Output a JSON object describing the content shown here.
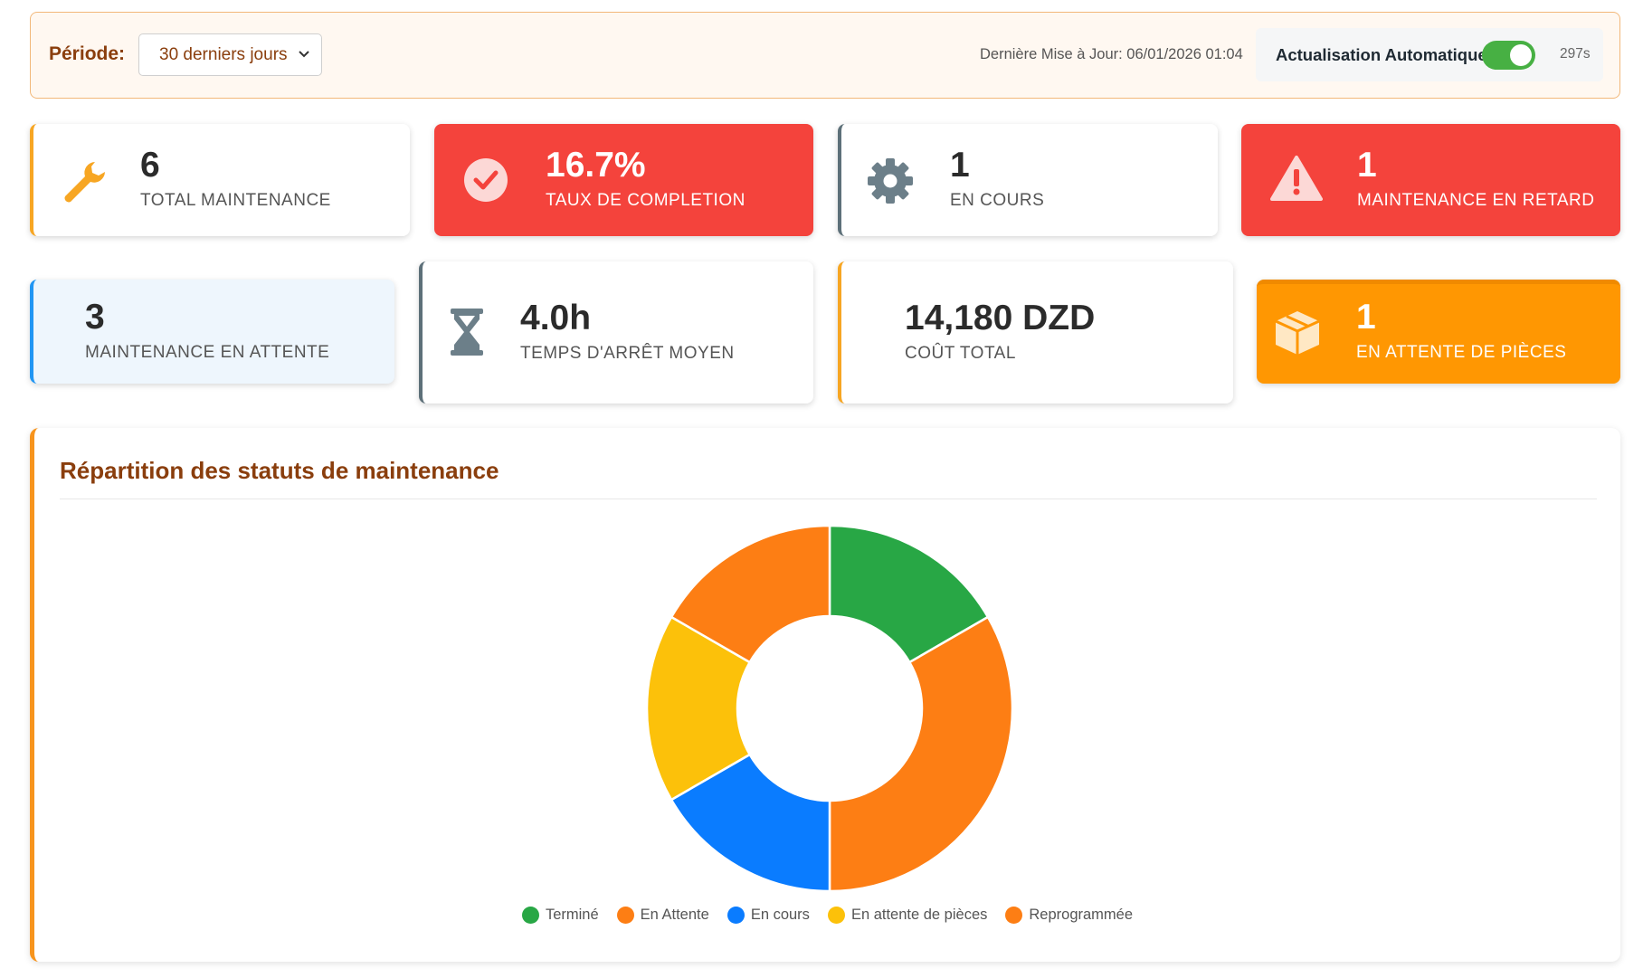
{
  "header": {
    "period_label": "Période:",
    "period_value": "30 derniers jours",
    "last_update": "Dernière Mise à Jour: 06/01/2026 01:04",
    "auto_refresh_label": "Actualisation Automatique",
    "auto_refresh_on": true,
    "countdown": "297s"
  },
  "stats": [
    {
      "value": "6",
      "label": "TOTAL MAINTENANCE",
      "icon": "wrench-icon"
    },
    {
      "value": "16.7%",
      "label": "TAUX DE COMPLETION",
      "icon": "check-circle-icon"
    },
    {
      "value": "1",
      "label": "EN COURS",
      "icon": "gear-icon"
    },
    {
      "value": "1",
      "label": "MAINTENANCE EN RETARD",
      "icon": "warning-icon"
    },
    {
      "value": "3",
      "label": "MAINTENANCE EN ATTENTE"
    },
    {
      "value": "4.0h",
      "label": "TEMPS D'ARRÊT MOYEN",
      "icon": "hourglass-icon"
    },
    {
      "value": "14,180 DZD",
      "label": "COÛT TOTAL"
    },
    {
      "value": "1",
      "label": "EN ATTENTE DE PIÈCES",
      "icon": "box-icon"
    }
  ],
  "colors": {
    "accent_orange": "#ff9702",
    "alert_red": "#f4433c",
    "title_brown": "#8a3e0d"
  },
  "chart_data": {
    "type": "pie",
    "title": "Répartition des statuts de maintenance",
    "donut": true,
    "legend_position": "bottom",
    "categories": [
      "Terminé",
      "En Attente",
      "En cours",
      "En attente de pièces",
      "Reprogrammée"
    ],
    "values": [
      1,
      2,
      1,
      1,
      1
    ],
    "colors": [
      "#28a745",
      "#fd7e14",
      "#0a7cff",
      "#fcc10a",
      "#fd7e14"
    ]
  }
}
